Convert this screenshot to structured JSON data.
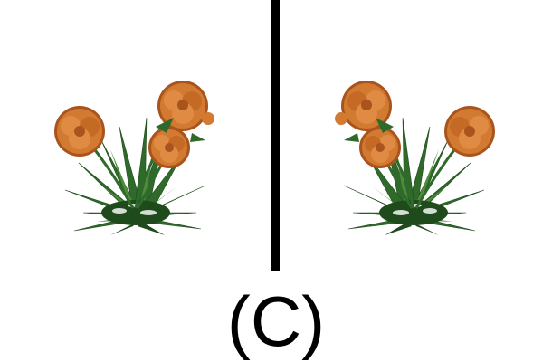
{
  "caption": "(C)",
  "colors": {
    "background": "#ffffff",
    "divider": "#000000",
    "petal": "#d27a32",
    "petal_dark": "#a9541c",
    "leaf": "#2f6a2a",
    "leaf_dark": "#1e4a1c",
    "leaf_light": "#4f8b3b"
  },
  "left_image": {
    "icon": "marigold-plant-icon",
    "orientation": "original"
  },
  "right_image": {
    "icon": "marigold-plant-icon",
    "orientation": "mirrored"
  }
}
